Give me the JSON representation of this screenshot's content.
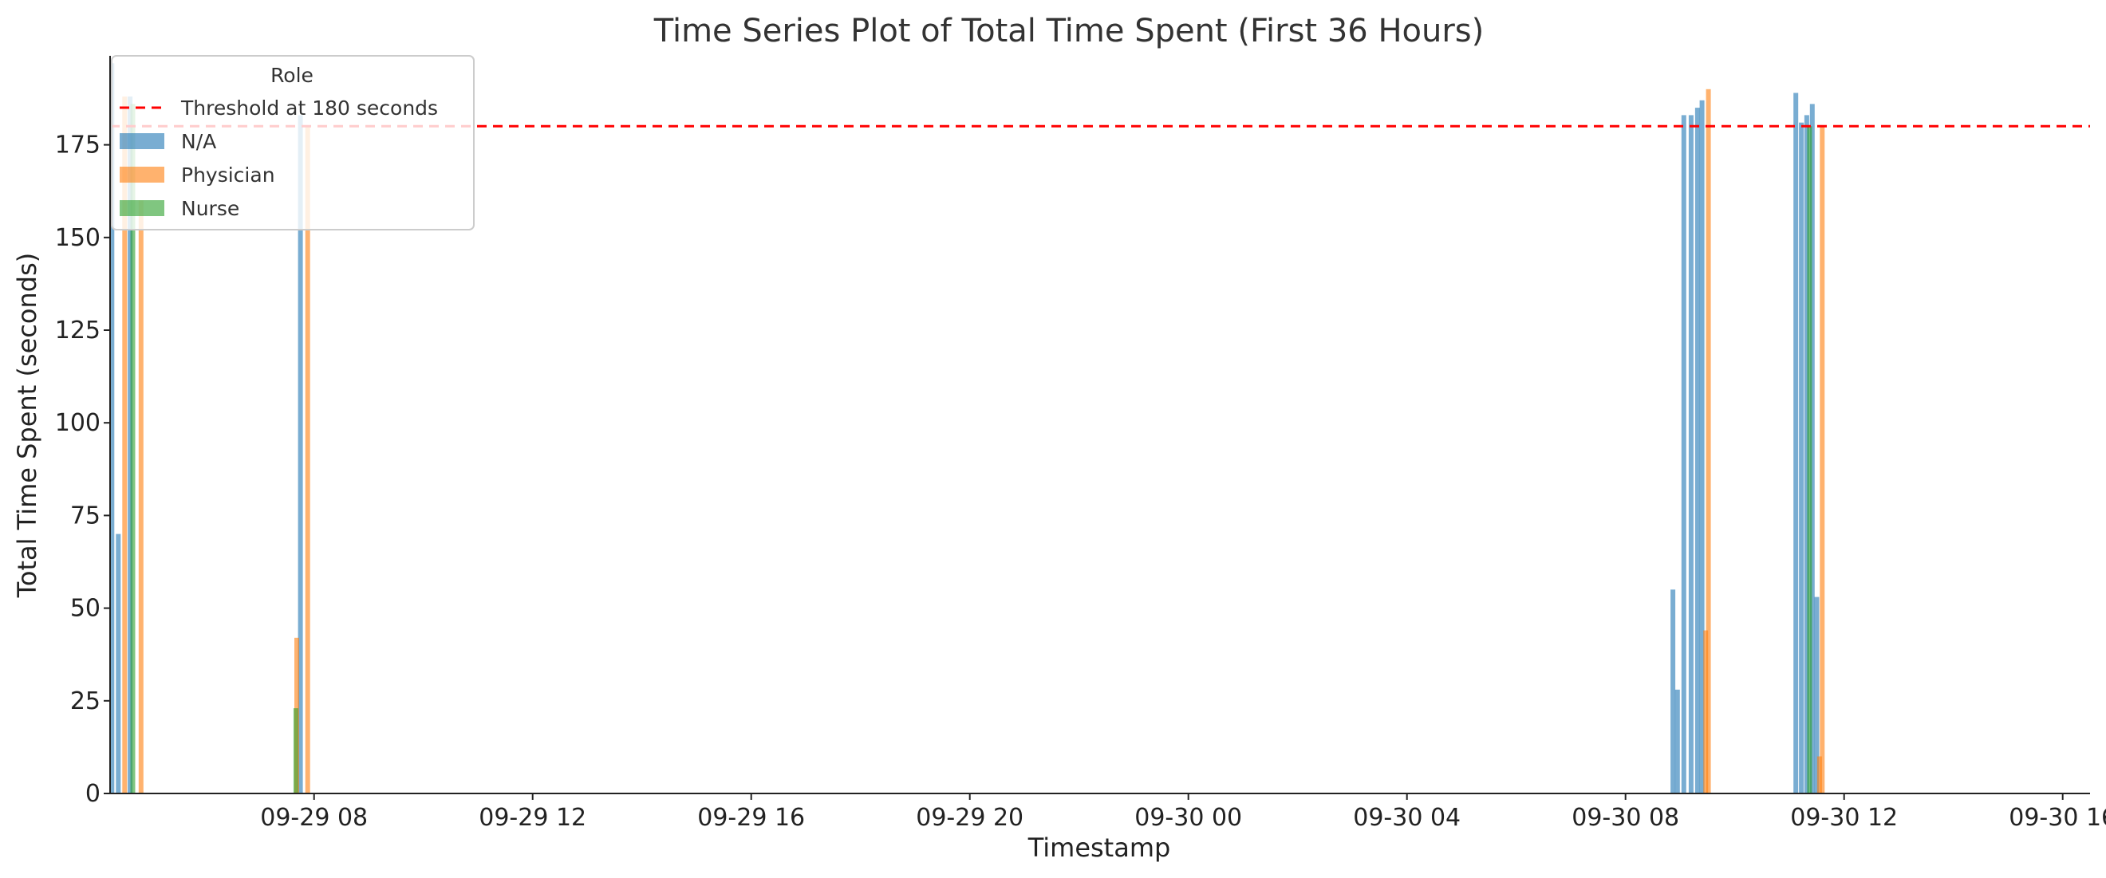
{
  "chart_data": {
    "type": "bar",
    "title": "Time Series Plot of Total Time Spent (First 36 Hours)",
    "xlabel": "Timestamp",
    "ylabel": "Total Time Spent (seconds)",
    "xlim": [
      "2023-09-29 04:16",
      "2023-09-30 16:30"
    ],
    "ylim": [
      0,
      199
    ],
    "x_ticks": [
      {
        "t": "2023-09-29 08:00",
        "label": "09-29 08"
      },
      {
        "t": "2023-09-29 12:00",
        "label": "09-29 12"
      },
      {
        "t": "2023-09-29 16:00",
        "label": "09-29 16"
      },
      {
        "t": "2023-09-29 20:00",
        "label": "09-29 20"
      },
      {
        "t": "2023-09-30 00:00",
        "label": "09-30 00"
      },
      {
        "t": "2023-09-30 04:00",
        "label": "09-30 04"
      },
      {
        "t": "2023-09-30 08:00",
        "label": "09-30 08"
      },
      {
        "t": "2023-09-30 12:00",
        "label": "09-30 12"
      },
      {
        "t": "2023-09-30 16:00",
        "label": "09-30 16"
      }
    ],
    "y_ticks": [
      0,
      25,
      50,
      75,
      100,
      125,
      150,
      175
    ],
    "threshold": {
      "value": 180,
      "label": "Threshold at 180 seconds",
      "color": "#ff0000",
      "style": "dashed"
    },
    "legend": {
      "title": "Role",
      "position": "top-left"
    },
    "grid": false,
    "series": [
      {
        "name": "N/A",
        "color": "#1f77b4",
        "points": [
          {
            "t": "2023-09-29 04:18",
            "v": 197
          },
          {
            "t": "2023-09-29 04:25",
            "v": 70
          },
          {
            "t": "2023-09-29 04:38",
            "v": 188
          },
          {
            "t": "2023-09-29 07:45",
            "v": 183
          },
          {
            "t": "2023-09-30 08:52",
            "v": 55
          },
          {
            "t": "2023-09-30 08:57",
            "v": 28
          },
          {
            "t": "2023-09-30 09:04",
            "v": 183
          },
          {
            "t": "2023-09-30 09:12",
            "v": 183
          },
          {
            "t": "2023-09-30 09:19",
            "v": 185
          },
          {
            "t": "2023-09-30 09:24",
            "v": 187
          },
          {
            "t": "2023-09-30 11:07",
            "v": 189
          },
          {
            "t": "2023-09-30 11:13",
            "v": 181
          },
          {
            "t": "2023-09-30 11:19",
            "v": 183
          },
          {
            "t": "2023-09-30 11:25",
            "v": 186
          },
          {
            "t": "2023-09-30 11:30",
            "v": 53
          }
        ]
      },
      {
        "name": "Physician",
        "color": "#ff7f0e",
        "points": [
          {
            "t": "2023-09-29 04:32",
            "v": 188
          },
          {
            "t": "2023-09-29 04:50",
            "v": 160
          },
          {
            "t": "2023-09-29 07:41",
            "v": 42
          },
          {
            "t": "2023-09-29 07:53",
            "v": 180
          },
          {
            "t": "2023-09-30 09:28",
            "v": 44
          },
          {
            "t": "2023-09-30 09:31",
            "v": 190
          },
          {
            "t": "2023-09-30 11:33",
            "v": 10
          },
          {
            "t": "2023-09-30 11:36",
            "v": 180
          }
        ]
      },
      {
        "name": "Nurse",
        "color": "#2ca02c",
        "points": [
          {
            "t": "2023-09-29 04:41",
            "v": 186
          },
          {
            "t": "2023-09-29 07:40",
            "v": 23
          },
          {
            "t": "2023-09-30 11:22",
            "v": 180
          }
        ]
      }
    ]
  }
}
